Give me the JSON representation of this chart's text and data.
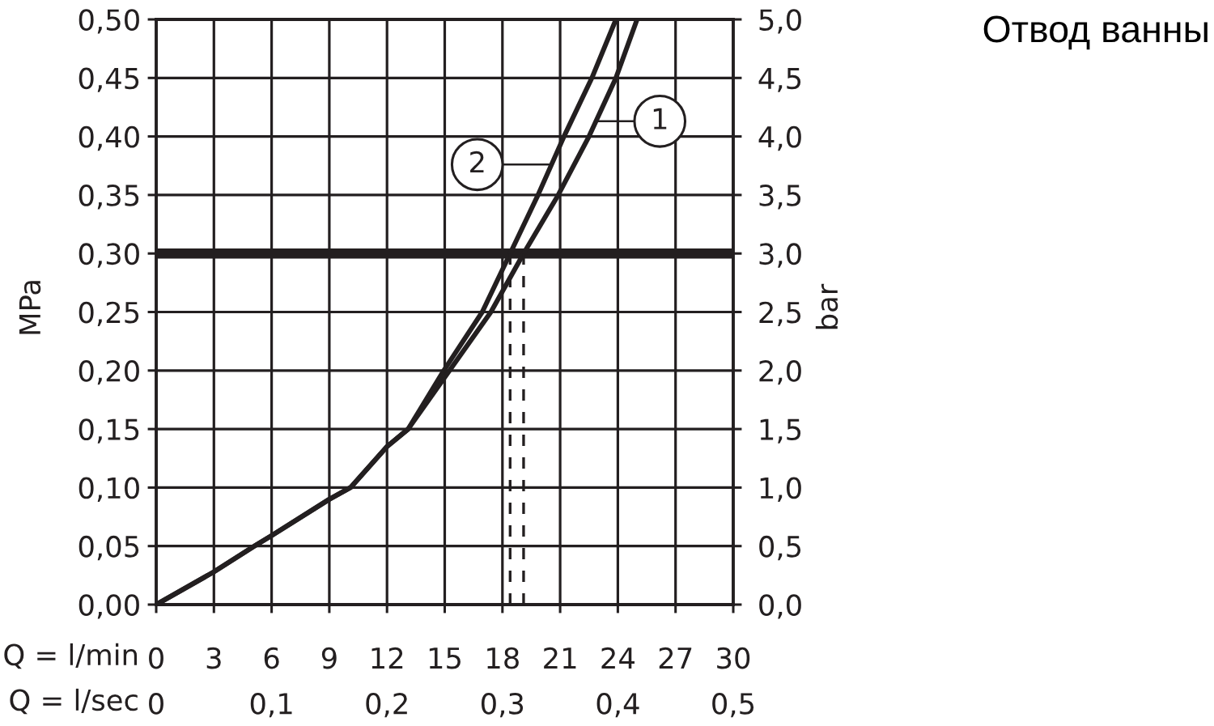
{
  "chart_data": {
    "type": "line",
    "title": "Отвод ванны",
    "xlabel": "Q = l/min",
    "x2label": "Q = l/sec",
    "ylabel": "MPa",
    "y2label": "bar",
    "xlim": [
      0,
      30
    ],
    "xticks": [
      0,
      3,
      6,
      9,
      12,
      15,
      18,
      21,
      24,
      27,
      30
    ],
    "x2lim": [
      0,
      0.5
    ],
    "x2ticks": [
      0,
      {
        "value": 0.1,
        "label": "0,1"
      },
      {
        "value": 0.2,
        "label": "0,2"
      },
      {
        "value": 0.3,
        "label": "0,3"
      },
      {
        "value": 0.4,
        "label": "0,4"
      },
      {
        "value": 0.5,
        "label": "0,5"
      }
    ],
    "ylim": [
      0,
      0.5
    ],
    "yticks": [
      {
        "value": 0,
        "label": "0,00"
      },
      {
        "value": 0.05,
        "label": "0,05"
      },
      {
        "value": 0.1,
        "label": "0,10"
      },
      {
        "value": 0.15,
        "label": "0,15"
      },
      {
        "value": 0.2,
        "label": "0,20"
      },
      {
        "value": 0.25,
        "label": "0,25"
      },
      {
        "value": 0.3,
        "label": "0,30"
      },
      {
        "value": 0.35,
        "label": "0,35"
      },
      {
        "value": 0.4,
        "label": "0,40"
      },
      {
        "value": 0.45,
        "label": "0,45"
      },
      {
        "value": 0.5,
        "label": "0,50"
      }
    ],
    "y2lim": [
      0,
      5
    ],
    "y2ticks": [
      {
        "value": 0,
        "label": "0,0"
      },
      {
        "value": 0.5,
        "label": "0,5"
      },
      {
        "value": 1,
        "label": "1,0"
      },
      {
        "value": 1.5,
        "label": "1,5"
      },
      {
        "value": 2,
        "label": "2,0"
      },
      {
        "value": 2.5,
        "label": "2,5"
      },
      {
        "value": 3,
        "label": "3,0"
      },
      {
        "value": 3.5,
        "label": "3,5"
      },
      {
        "value": 4,
        "label": "4,0"
      },
      {
        "value": 4.5,
        "label": "4,5"
      },
      {
        "value": 5,
        "label": "5,0"
      }
    ],
    "grid": true,
    "series": [
      {
        "color": "#231f20",
        "line_style": "solid",
        "x": [
          0,
          3,
          5.1,
          6,
          9,
          10.1,
          12,
          13.1,
          15.25,
          17.4,
          19.1,
          20.9,
          22.5,
          23.9,
          25.0
        ],
        "values": [
          0,
          0.028,
          0.05,
          0.059,
          0.09,
          0.1,
          0.135,
          0.15,
          0.2,
          0.25,
          0.3,
          0.35,
          0.4,
          0.45,
          0.5
        ]
      },
      {
        "color": "#231f20",
        "line_style": "solid",
        "x": [
          0,
          3,
          5.1,
          6,
          9,
          10.1,
          12,
          13.1,
          14.95,
          16.95,
          18.4,
          19.85,
          21.2,
          22.65,
          23.9
        ],
        "values": [
          0,
          0.028,
          0.05,
          0.059,
          0.09,
          0.1,
          0.135,
          0.15,
          0.2,
          0.25,
          0.3,
          0.35,
          0.4,
          0.45,
          0.5
        ]
      },
      {
        "color": "#231f20",
        "line_style": "dashed",
        "x": [
          18.4,
          18.4
        ],
        "values": [
          0,
          0.3
        ]
      },
      {
        "color": "#231f20",
        "line_style": "dashed",
        "x": [
          19.1,
          19.1
        ],
        "values": [
          0,
          0.3
        ]
      }
    ],
    "ref_lines": [
      {
        "axis": "y",
        "value": 0.3,
        "color": "#231f20",
        "line_style": "solid"
      }
    ],
    "annotations": [
      {
        "text": "1",
        "x": 22.85,
        "y": 0.413
      },
      {
        "text": "2",
        "x": 20.55,
        "y": 0.376
      }
    ]
  }
}
